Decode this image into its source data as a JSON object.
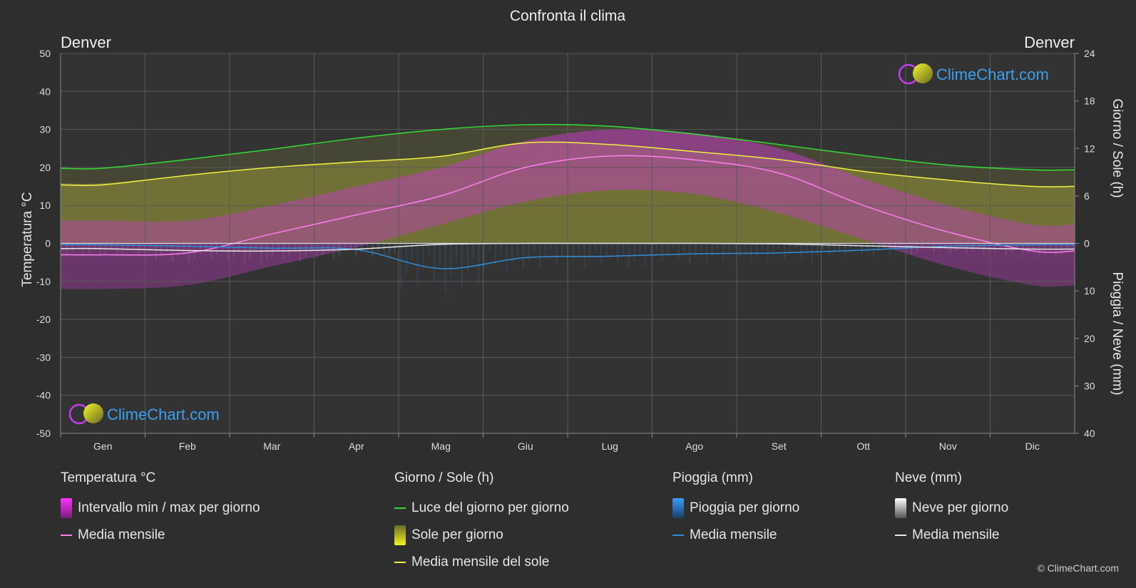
{
  "title": "Confronta il clima",
  "city_left": "Denver",
  "city_right": "Denver",
  "axis_left_label": "Temperatura °C",
  "axis_right_top_label": "Giorno / Sole (h)",
  "axis_right_bottom_label": "Pioggia / Neve (mm)",
  "brand": "ClimeChart.com",
  "copyright": "© ClimeChart.com",
  "colors": {
    "background": "#2e2e2e",
    "temp_range": "#d640d6",
    "temp_mean": "#ff7ff0",
    "daylight": "#33dd33",
    "sun_fill": "#a8a83a",
    "sun_mean": "#f0f040",
    "rain": "#2f8fdc",
    "snow": "#e8e8e8"
  },
  "legend": {
    "temperature": {
      "title": "Temperatura °C",
      "range_label": "Intervallo min / max per giorno",
      "mean_label": "Media mensile"
    },
    "sun": {
      "title": "Giorno / Sole (h)",
      "daylight_label": "Luce del giorno per giorno",
      "sun_label": "Sole per giorno",
      "sun_mean_label": "Media mensile del sole"
    },
    "rain": {
      "title": "Pioggia (mm)",
      "rain_label": "Pioggia per giorno",
      "mean_label": "Media mensile"
    },
    "snow": {
      "title": "Neve (mm)",
      "snow_label": "Neve per giorno",
      "mean_label": "Media mensile"
    }
  },
  "chart_data": {
    "type": "line",
    "months": [
      "Gen",
      "Feb",
      "Mar",
      "Apr",
      "Mag",
      "Giu",
      "Lug",
      "Ago",
      "Set",
      "Ott",
      "Nov",
      "Dic"
    ],
    "y_left": {
      "label": "Temperatura °C",
      "range": [
        -50,
        50
      ],
      "ticks": [
        50,
        40,
        30,
        20,
        10,
        0,
        -10,
        -20,
        -30,
        -40,
        -50
      ]
    },
    "y_right_top": {
      "label": "Giorno / Sole (h)",
      "range": [
        0,
        24
      ],
      "ticks": [
        24,
        18,
        12,
        6,
        0
      ]
    },
    "y_right_bottom": {
      "label": "Pioggia / Neve (mm)",
      "range": [
        0,
        40
      ],
      "ticks": [
        10,
        20,
        30,
        40
      ]
    },
    "grid": true,
    "series": [
      {
        "name": "Media mensile",
        "unit": "°C",
        "values": [
          -3,
          -2.5,
          2.5,
          7.5,
          12.5,
          20,
          23,
          22,
          18.5,
          10,
          3,
          -2
        ]
      },
      {
        "name": "Intervallo min / max per giorno",
        "unit": "°C",
        "max": [
          6,
          6,
          10,
          15,
          20,
          27,
          30,
          29,
          25,
          17,
          10,
          5
        ],
        "min": [
          -12,
          -11,
          -6,
          -1,
          5,
          11,
          14,
          13,
          8,
          1,
          -6,
          -11
        ]
      },
      {
        "name": "Luce del giorno per giorno",
        "unit": "h",
        "values": [
          9.5,
          10.6,
          11.9,
          13.3,
          14.4,
          15.0,
          14.8,
          13.8,
          12.5,
          11.1,
          9.9,
          9.3
        ]
      },
      {
        "name": "Sole per giorno",
        "unit": "h",
        "values": [
          7.6,
          8.6,
          9.6,
          10.4,
          11.0,
          12.8,
          12.5,
          11.6,
          10.6,
          9.1,
          8.0,
          7.3
        ]
      },
      {
        "name": "Media mensile del sole",
        "unit": "h",
        "values": [
          7.4,
          8.6,
          9.6,
          10.3,
          11.0,
          12.7,
          12.5,
          11.6,
          10.6,
          9.1,
          8.0,
          7.2
        ]
      },
      {
        "name": "Pioggia media mensile",
        "unit": "mm",
        "values": [
          0.3,
          0.6,
          1.0,
          1.3,
          5.3,
          3.0,
          2.7,
          2.2,
          2.0,
          1.4,
          0.6,
          0.3
        ]
      },
      {
        "name": "Neve media mensile",
        "unit": "mm",
        "values": [
          1.1,
          1.5,
          1.6,
          1.2,
          0.2,
          0.0,
          0.0,
          0.0,
          0.1,
          0.5,
          0.9,
          1.2
        ]
      }
    ]
  }
}
